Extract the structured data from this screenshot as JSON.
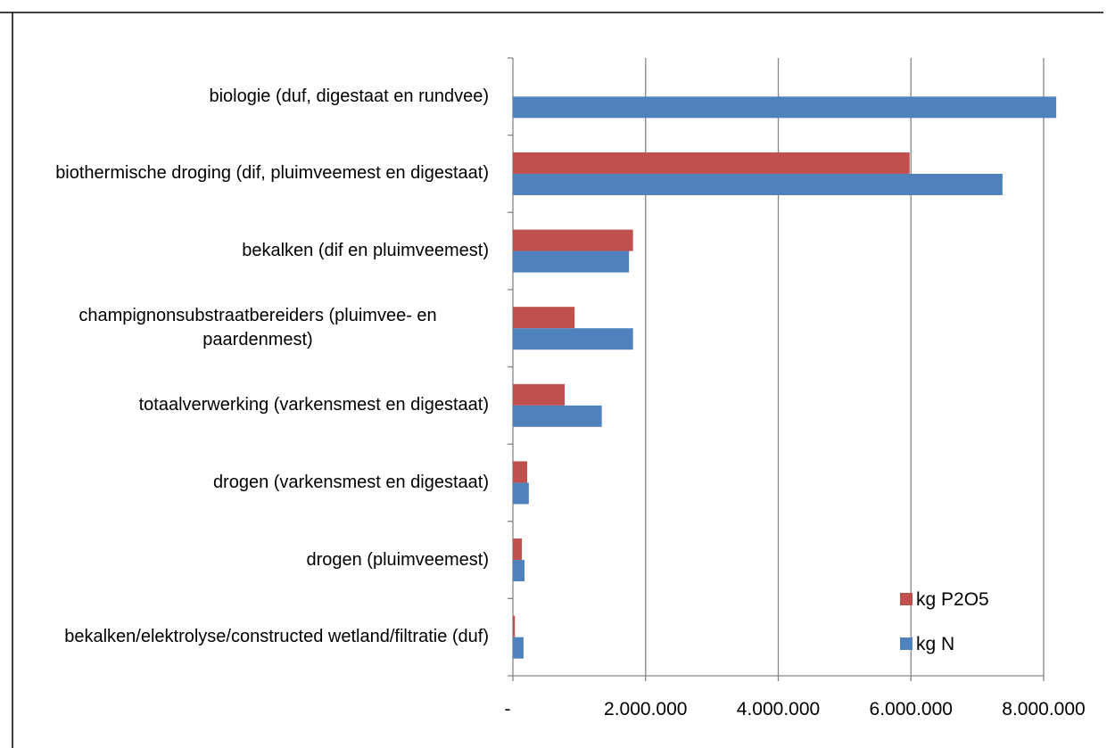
{
  "chart_data": {
    "type": "barh",
    "categories": [
      "biologie (duf, digestaat en rundvee)",
      "biothermische droging (dif, pluimveemest en digestaat)",
      "bekalken (dif en pluimveemest)",
      "champignonsubstraatbereiders (pluimvee- en paardenmest)",
      "totaalverwerking (varkensmest en digestaat)",
      "drogen (varkensmest en digestaat)",
      "drogen (pluimveemest)",
      "bekalken/elektrolyse/constructed wetland/filtratie (duf)"
    ],
    "series": [
      {
        "name": "kg P2O5",
        "color": "#c0504d",
        "values": [
          0,
          5980000,
          1810000,
          930000,
          780000,
          215000,
          135000,
          30000
        ]
      },
      {
        "name": "kg N",
        "color": "#4f81bd",
        "values": [
          8190000,
          7380000,
          1750000,
          1810000,
          1340000,
          240000,
          175000,
          160000
        ]
      }
    ],
    "xlim": [
      0,
      8000000
    ],
    "xticks": [
      {
        "value": 0,
        "label": "-"
      },
      {
        "value": 2000000,
        "label": "2.000.000"
      },
      {
        "value": 4000000,
        "label": "4.000.000"
      },
      {
        "value": 6000000,
        "label": "6.000.000"
      },
      {
        "value": 8000000,
        "label": "8.000.000"
      }
    ],
    "grid": true,
    "legend": "lower right"
  }
}
